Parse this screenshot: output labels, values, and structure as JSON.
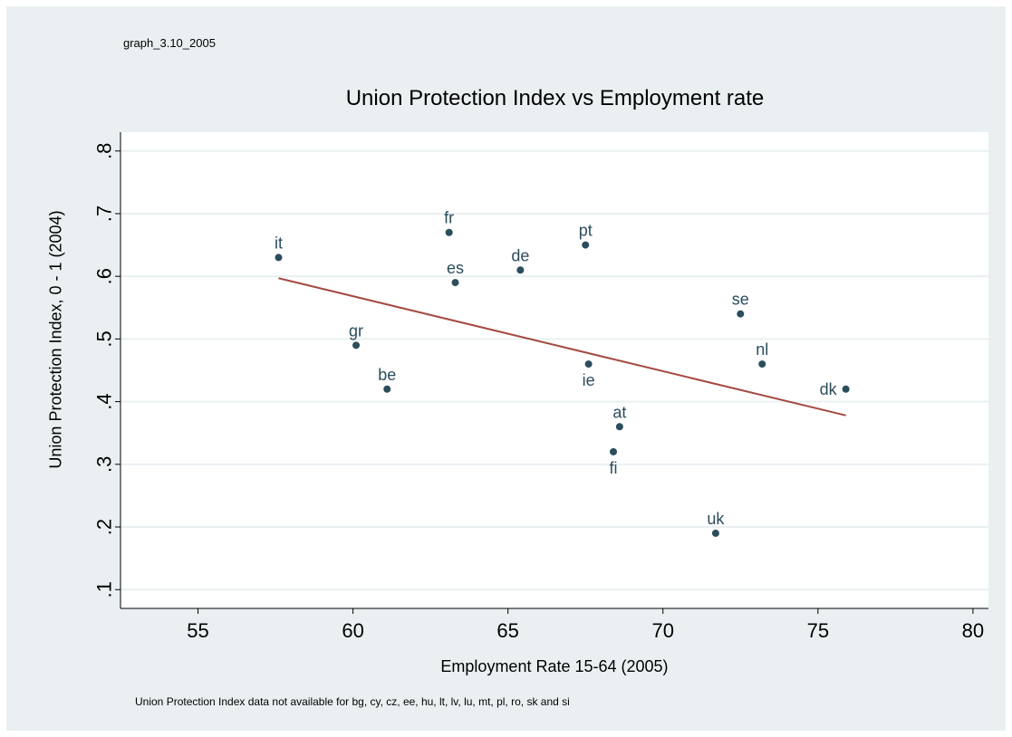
{
  "graph_id": "graph_3.10_2005",
  "note": "Union Protection Index data not available for bg, cy, cz, ee, hu, lt, lv, lu, mt, pl, ro, sk and si",
  "colors": {
    "frame_bg": "#eaf0f2",
    "plot_bg": "#ffffff",
    "marker": "#2b4d5c",
    "fit_line": "#a34a40",
    "grid": "#eaf0f2"
  },
  "chart_data": {
    "type": "scatter",
    "title": "Union Protection Index vs Employment rate",
    "xlabel": "Employment Rate 15-64 (2005)",
    "ylabel": "Union Protection Index, 0 - 1 (2004)",
    "xlim": [
      52.5,
      80.5
    ],
    "ylim": [
      0.07,
      0.83
    ],
    "x_ticks": [
      "55",
      "60",
      "65",
      "70",
      "75",
      "80"
    ],
    "y_ticks": [
      ".1",
      ".2",
      ".3",
      ".4",
      ".5",
      ".6",
      ".7",
      ".8"
    ],
    "grid": true,
    "legend": "none",
    "points": [
      {
        "label": "it",
        "x": 57.6,
        "y": 0.63,
        "label_pos": "top"
      },
      {
        "label": "fr",
        "x": 63.1,
        "y": 0.67,
        "label_pos": "top"
      },
      {
        "label": "es",
        "x": 63.3,
        "y": 0.59,
        "label_pos": "top"
      },
      {
        "label": "de",
        "x": 65.4,
        "y": 0.61,
        "label_pos": "top"
      },
      {
        "label": "pt",
        "x": 67.5,
        "y": 0.65,
        "label_pos": "top"
      },
      {
        "label": "gr",
        "x": 60.1,
        "y": 0.49,
        "label_pos": "top"
      },
      {
        "label": "be",
        "x": 61.1,
        "y": 0.42,
        "label_pos": "top"
      },
      {
        "label": "ie",
        "x": 67.6,
        "y": 0.46,
        "label_pos": "bottom"
      },
      {
        "label": "se",
        "x": 72.5,
        "y": 0.54,
        "label_pos": "top"
      },
      {
        "label": "nl",
        "x": 73.2,
        "y": 0.46,
        "label_pos": "top"
      },
      {
        "label": "dk",
        "x": 75.9,
        "y": 0.42,
        "label_pos": "left"
      },
      {
        "label": "at",
        "x": 68.6,
        "y": 0.36,
        "label_pos": "top"
      },
      {
        "label": "fi",
        "x": 68.4,
        "y": 0.32,
        "label_pos": "bottom"
      },
      {
        "label": "uk",
        "x": 71.7,
        "y": 0.19,
        "label_pos": "top"
      }
    ],
    "fit_line": {
      "x1": 57.6,
      "y1": 0.597,
      "x2": 75.9,
      "y2": 0.378
    }
  }
}
